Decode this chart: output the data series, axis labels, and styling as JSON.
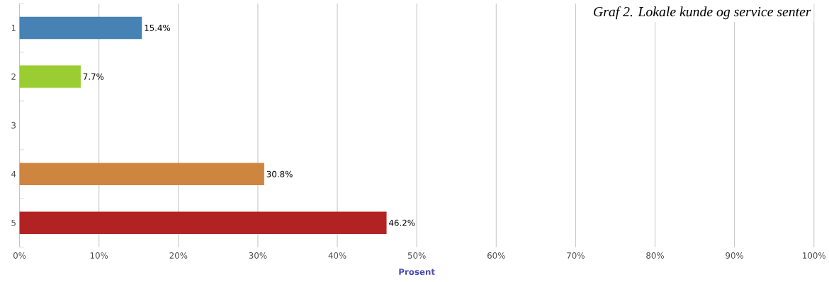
{
  "chart_data": {
    "type": "bar",
    "orientation": "horizontal",
    "title": "Graf 2. Lokale kunde og service senter",
    "xlabel": "Prosent",
    "categories": [
      "1",
      "2",
      "3",
      "4",
      "5"
    ],
    "values": [
      15.4,
      7.7,
      null,
      30.8,
      46.2
    ],
    "colors": [
      "#4682b4",
      "#9acd32",
      "#808080",
      "#cd853f",
      "#b22222"
    ],
    "value_labels": [
      "15.4%",
      "7.7%",
      null,
      "30.8%",
      "46.2%"
    ],
    "xlim": [
      0,
      100
    ],
    "xticks": [
      {
        "value": 0,
        "label": "0%"
      },
      {
        "value": 10,
        "label": "10%"
      },
      {
        "value": 20,
        "label": "20%"
      },
      {
        "value": 30,
        "label": "30%"
      },
      {
        "value": 40,
        "label": "40%"
      },
      {
        "value": 50,
        "label": "50%"
      },
      {
        "value": 60,
        "label": "60%"
      },
      {
        "value": 70,
        "label": "70%"
      },
      {
        "value": 80,
        "label": "80%"
      },
      {
        "value": 90,
        "label": "90%"
      },
      {
        "value": 100,
        "label": "100%"
      }
    ],
    "grid": "x"
  }
}
